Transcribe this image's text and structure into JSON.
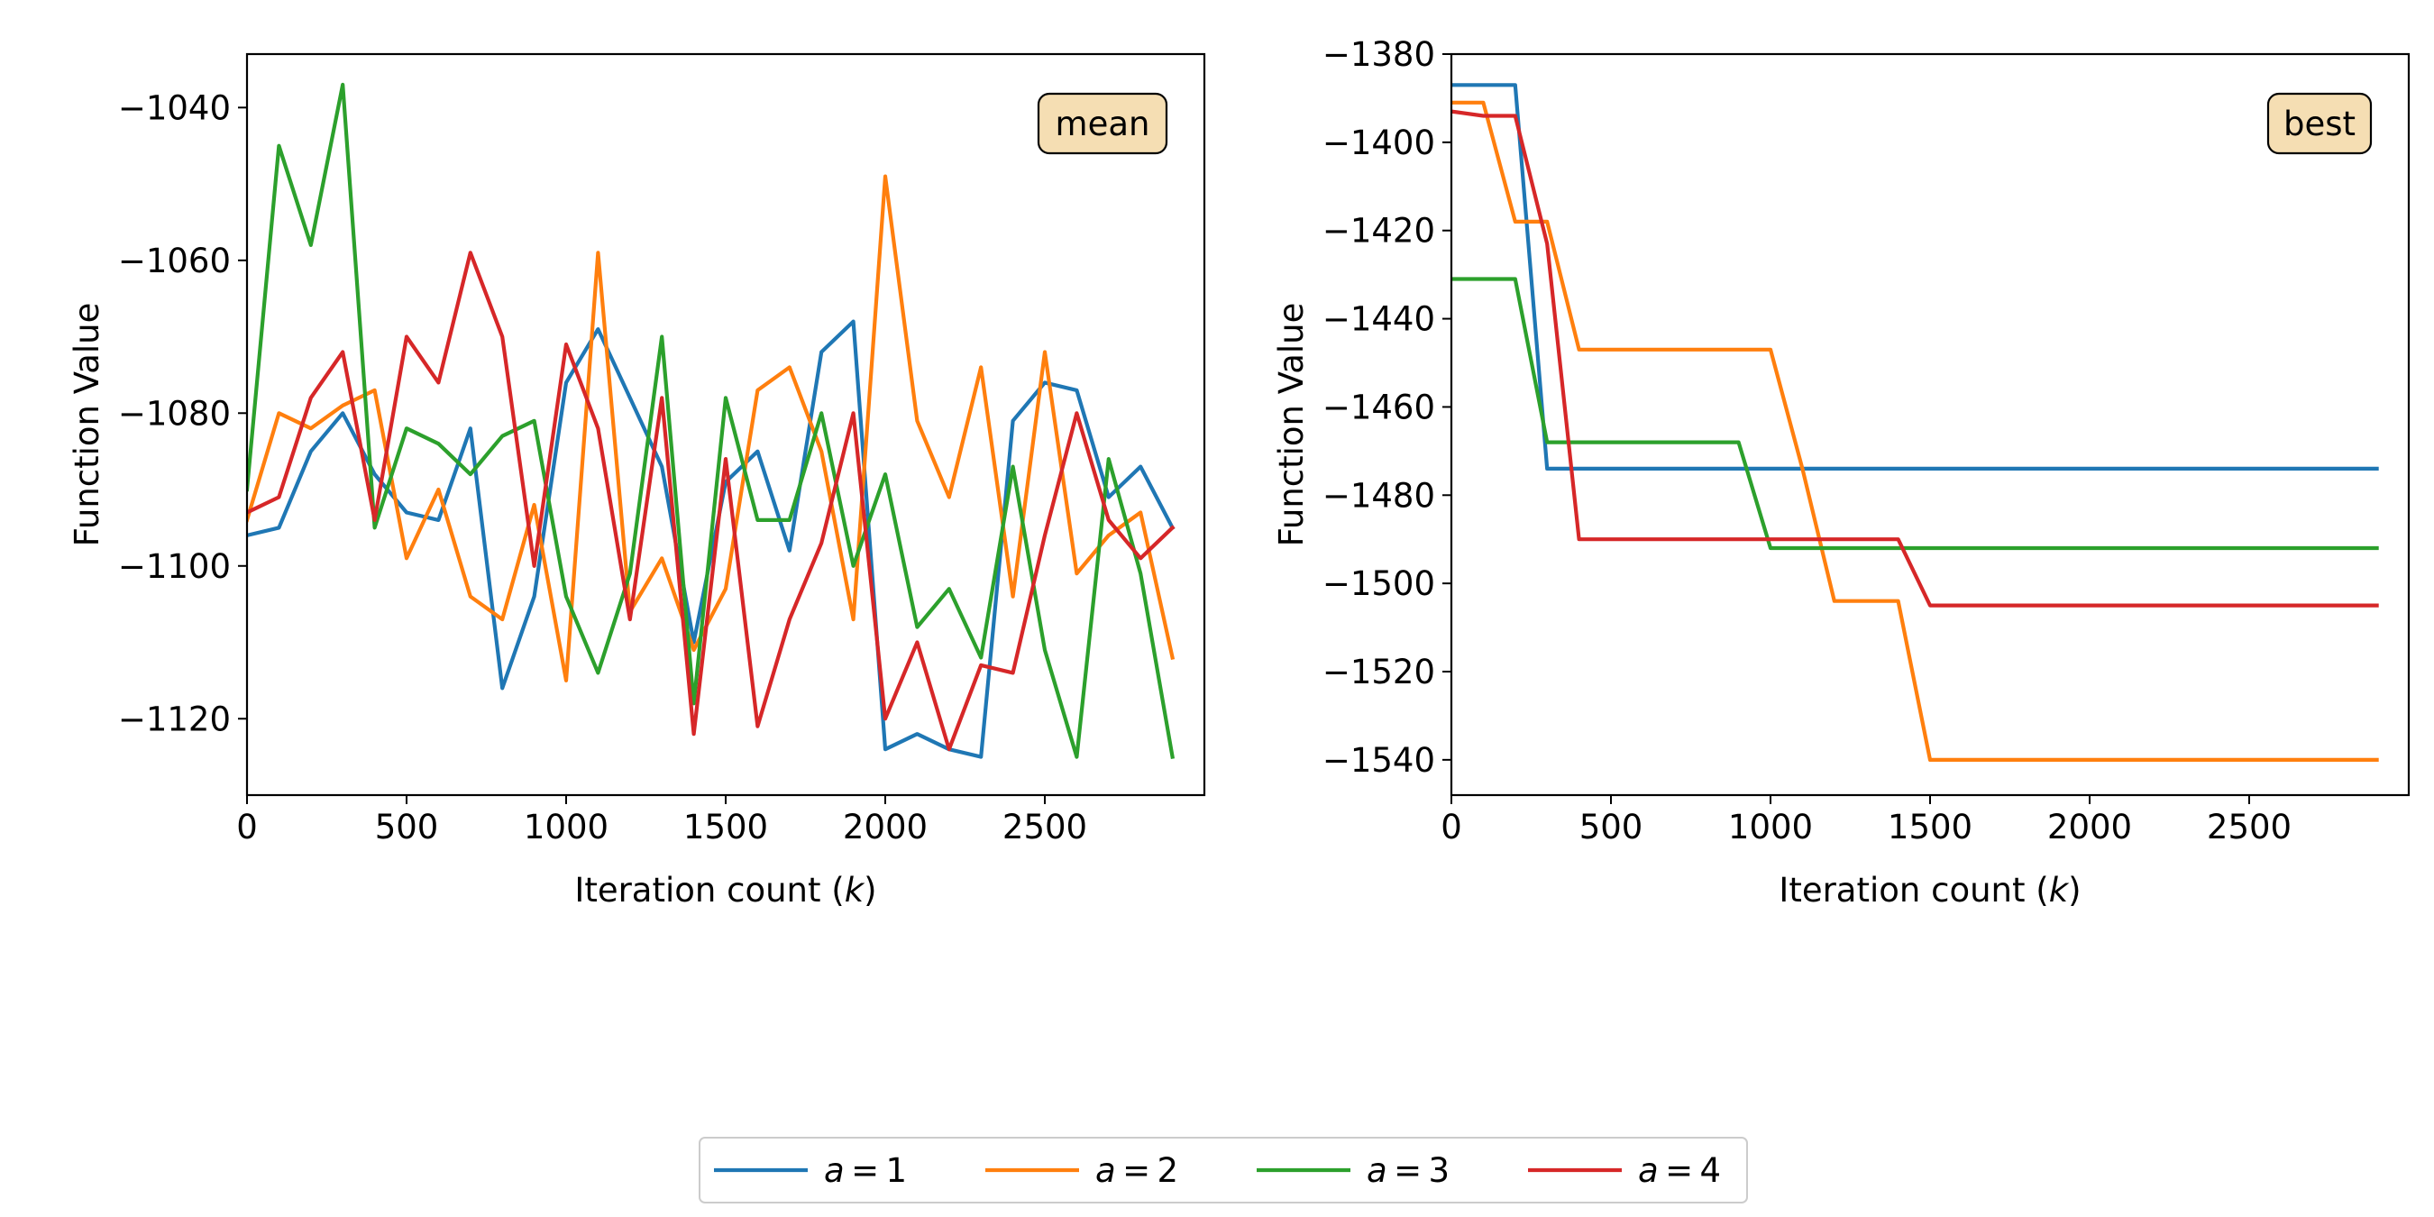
{
  "chart_data": [
    {
      "type": "line",
      "annotation": "mean",
      "xlabel": "Iteration count (k)",
      "ylabel": "Function Value",
      "xlim": [
        0,
        3000
      ],
      "ylim": [
        -1130,
        -1033
      ],
      "xticks": [
        0,
        500,
        1000,
        1500,
        2000,
        2500
      ],
      "yticks": [
        -1120,
        -1100,
        -1080,
        -1060,
        -1040
      ],
      "grid": false,
      "x": [
        0,
        100,
        200,
        300,
        400,
        500,
        600,
        700,
        800,
        900,
        1000,
        1100,
        1200,
        1300,
        1400,
        1500,
        1600,
        1700,
        1800,
        1900,
        2000,
        2100,
        2200,
        2300,
        2400,
        2500,
        2600,
        2700,
        2800,
        2900
      ],
      "series": [
        {
          "name": "a = 1",
          "color": "#1f77b4",
          "values": [
            -1096,
            -1095,
            -1085,
            -1080,
            -1088,
            -1093,
            -1094,
            -1082,
            -1116,
            -1104,
            -1076,
            -1069,
            -1078,
            -1087,
            -1110,
            -1089,
            -1085,
            -1098,
            -1072,
            -1068,
            -1124,
            -1122,
            -1124,
            -1125,
            -1081,
            -1076,
            -1077,
            -1091,
            -1087,
            -1095
          ]
        },
        {
          "name": "a = 2",
          "color": "#ff7f0e",
          "values": [
            -1094,
            -1080,
            -1082,
            -1079,
            -1077,
            -1099,
            -1090,
            -1104,
            -1107,
            -1092,
            -1115,
            -1059,
            -1106,
            -1099,
            -1111,
            -1103,
            -1077,
            -1074,
            -1085,
            -1107,
            -1049,
            -1081,
            -1091,
            -1074,
            -1104,
            -1072,
            -1101,
            -1096,
            -1093,
            -1112
          ]
        },
        {
          "name": "a = 3",
          "color": "#2ca02c",
          "values": [
            -1090,
            -1045,
            -1058,
            -1037,
            -1095,
            -1082,
            -1084,
            -1088,
            -1083,
            -1081,
            -1104,
            -1114,
            -1101,
            -1070,
            -1118,
            -1078,
            -1094,
            -1094,
            -1080,
            -1100,
            -1088,
            -1108,
            -1103,
            -1112,
            -1087,
            -1111,
            -1125,
            -1086,
            -1101,
            -1125
          ]
        },
        {
          "name": "a = 4",
          "color": "#d62728",
          "values": [
            -1093,
            -1091,
            -1078,
            -1072,
            -1094,
            -1070,
            -1076,
            -1059,
            -1070,
            -1100,
            -1071,
            -1082,
            -1107,
            -1078,
            -1122,
            -1086,
            -1121,
            -1107,
            -1097,
            -1080,
            -1120,
            -1110,
            -1124,
            -1113,
            -1114,
            -1096,
            -1080,
            -1094,
            -1099,
            -1095
          ]
        }
      ]
    },
    {
      "type": "line",
      "annotation": "best",
      "xlabel": "Iteration count (k)",
      "ylabel": "Function Value",
      "xlim": [
        0,
        3000
      ],
      "ylim": [
        -1548,
        -1380
      ],
      "xticks": [
        0,
        500,
        1000,
        1500,
        2000,
        2500
      ],
      "yticks": [
        -1540,
        -1520,
        -1500,
        -1480,
        -1460,
        -1440,
        -1420,
        -1400,
        -1380
      ],
      "grid": false,
      "x": [
        0,
        100,
        200,
        300,
        400,
        500,
        600,
        700,
        800,
        900,
        1000,
        1100,
        1200,
        1300,
        1400,
        1500,
        1600,
        1700,
        1800,
        1900,
        2000,
        2100,
        2200,
        2300,
        2400,
        2500,
        2600,
        2700,
        2800,
        2900
      ],
      "series": [
        {
          "name": "a = 1",
          "color": "#1f77b4",
          "values": [
            -1387,
            -1387,
            -1387,
            -1474,
            -1474,
            -1474,
            -1474,
            -1474,
            -1474,
            -1474,
            -1474,
            -1474,
            -1474,
            -1474,
            -1474,
            -1474,
            -1474,
            -1474,
            -1474,
            -1474,
            -1474,
            -1474,
            -1474,
            -1474,
            -1474,
            -1474,
            -1474,
            -1474,
            -1474,
            -1474
          ]
        },
        {
          "name": "a = 2",
          "color": "#ff7f0e",
          "values": [
            -1391,
            -1391,
            -1418,
            -1418,
            -1447,
            -1447,
            -1447,
            -1447,
            -1447,
            -1447,
            -1447,
            -1474,
            -1504,
            -1504,
            -1504,
            -1540,
            -1540,
            -1540,
            -1540,
            -1540,
            -1540,
            -1540,
            -1540,
            -1540,
            -1540,
            -1540,
            -1540,
            -1540,
            -1540,
            -1540
          ]
        },
        {
          "name": "a = 3",
          "color": "#2ca02c",
          "values": [
            -1431,
            -1431,
            -1431,
            -1468,
            -1468,
            -1468,
            -1468,
            -1468,
            -1468,
            -1468,
            -1492,
            -1492,
            -1492,
            -1492,
            -1492,
            -1492,
            -1492,
            -1492,
            -1492,
            -1492,
            -1492,
            -1492,
            -1492,
            -1492,
            -1492,
            -1492,
            -1492,
            -1492,
            -1492,
            -1492
          ]
        },
        {
          "name": "a = 4",
          "color": "#d62728",
          "values": [
            -1393,
            -1394,
            -1394,
            -1423,
            -1490,
            -1490,
            -1490,
            -1490,
            -1490,
            -1490,
            -1490,
            -1490,
            -1490,
            -1490,
            -1490,
            -1505,
            -1505,
            -1505,
            -1505,
            -1505,
            -1505,
            -1505,
            -1505,
            -1505,
            -1505,
            -1505,
            -1505,
            -1505,
            -1505,
            -1505
          ]
        }
      ]
    }
  ],
  "legend": {
    "placement": "bottom-center",
    "entries": [
      {
        "label": "a = 1",
        "color": "#1f77b4"
      },
      {
        "label": "a = 2",
        "color": "#ff7f0e"
      },
      {
        "label": "a = 3",
        "color": "#2ca02c"
      },
      {
        "label": "a = 4",
        "color": "#d62728"
      }
    ]
  }
}
